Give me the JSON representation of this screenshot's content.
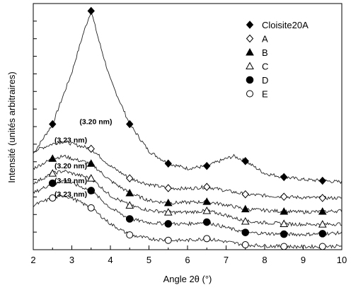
{
  "chart_data": {
    "type": "line",
    "xlabel": "Angle 2θ (°)",
    "ylabel": "Intensité (unités arbitraires)",
    "xlim": [
      2,
      10
    ],
    "xticks": [
      "2",
      "3",
      "4",
      "5",
      "6",
      "7",
      "8",
      "9",
      "10"
    ],
    "y_tick_labels_shown": false,
    "grid": false,
    "legend_position": "top-right",
    "series": [
      {
        "name": "Cloisite20A",
        "marker": "diamond-filled",
        "x": [
          2.0,
          2.5,
          3.0,
          3.3,
          3.5,
          3.7,
          4.0,
          4.5,
          5.0,
          5.5,
          6.0,
          6.5,
          7.0,
          7.2,
          7.5,
          8.0,
          8.5,
          9.0,
          9.5,
          10.0
        ],
        "y": [
          39,
          51,
          72,
          88,
          97,
          85,
          69,
          51,
          40,
          35,
          33,
          34,
          37,
          38,
          36,
          31,
          29.5,
          28.5,
          28,
          27.5
        ],
        "marker_x": [
          2.5,
          3.5,
          4.5,
          5.5,
          6.5,
          7.5,
          8.5,
          9.5
        ]
      },
      {
        "name": "A",
        "marker": "diamond-open",
        "x": [
          2.0,
          2.5,
          2.8,
          3.0,
          3.5,
          4.0,
          4.5,
          5.0,
          5.5,
          6.0,
          6.5,
          7.0,
          7.5,
          8.0,
          8.5,
          9.0,
          9.5,
          10.0
        ],
        "y": [
          40,
          43,
          44,
          43,
          41,
          34,
          29,
          26.5,
          25,
          24.8,
          25.5,
          24,
          22.5,
          22,
          21.5,
          21.2,
          21,
          21
        ],
        "marker_x": [
          3.5,
          4.5,
          5.5,
          6.5,
          7.5,
          8.5,
          9.5
        ]
      },
      {
        "name": "B",
        "marker": "triangle-filled",
        "x": [
          2.0,
          2.5,
          2.8,
          3.0,
          3.5,
          4.0,
          4.5,
          5.0,
          5.5,
          6.0,
          6.5,
          7.0,
          7.5,
          8.0,
          8.5,
          9.0,
          9.5,
          10.0
        ],
        "y": [
          33,
          37,
          38,
          37,
          35,
          28,
          23,
          20,
          19,
          19.2,
          19.5,
          18.2,
          16.5,
          16,
          15.5,
          15.3,
          15.5,
          15.8
        ],
        "marker_x": [
          2.5,
          3.5,
          4.5,
          5.5,
          6.5,
          7.5,
          8.5,
          9.5
        ]
      },
      {
        "name": "C",
        "marker": "triangle-open",
        "x": [
          2.0,
          2.5,
          2.8,
          3.0,
          3.5,
          4.0,
          4.5,
          5.0,
          5.5,
          6.0,
          6.5,
          7.0,
          7.5,
          8.0,
          8.5,
          9.0,
          9.5,
          10.0
        ],
        "y": [
          27,
          31,
          32,
          31,
          29,
          22,
          18,
          16,
          15.2,
          15.2,
          15.8,
          14,
          11.5,
          11,
          10.5,
          10.3,
          10.3,
          10.5
        ],
        "marker_x": [
          2.5,
          3.5,
          4.5,
          5.5,
          6.5,
          7.5,
          8.5,
          9.5
        ]
      },
      {
        "name": "D",
        "marker": "circle-filled",
        "x": [
          2.0,
          2.5,
          2.8,
          3.0,
          3.5,
          4.0,
          4.5,
          5.0,
          5.5,
          6.0,
          6.5,
          7.0,
          7.5,
          8.0,
          8.5,
          9.0,
          9.5,
          10.0
        ],
        "y": [
          23,
          27,
          28,
          27,
          24,
          17,
          12.5,
          11,
          10.5,
          10.5,
          11.2,
          9,
          7,
          6.6,
          6.3,
          6.2,
          6.5,
          6.8
        ],
        "marker_x": [
          2.5,
          3.5,
          4.5,
          5.5,
          6.5,
          7.5,
          8.5,
          9.5
        ]
      },
      {
        "name": "E",
        "marker": "circle-open",
        "x": [
          2.0,
          2.5,
          2.8,
          3.0,
          3.5,
          4.0,
          4.5,
          5.0,
          5.5,
          6.0,
          6.5,
          7.0,
          7.5,
          8.0,
          8.5,
          9.0,
          9.5,
          10.0
        ],
        "y": [
          18,
          21,
          22,
          21,
          17,
          10.5,
          6,
          4.5,
          3.8,
          3.8,
          4.5,
          3.2,
          2,
          1.6,
          1.3,
          1.2,
          1.3,
          1.5
        ],
        "marker_x": [
          2.5,
          3.5,
          4.5,
          5.5,
          6.5,
          7.5,
          8.5,
          9.5
        ]
      }
    ],
    "annotations": [
      {
        "text": "(3.20 nm)",
        "x": 3.2,
        "y": 51
      },
      {
        "text": "(3.23 nm)",
        "x": 2.55,
        "y": 43.5
      },
      {
        "text": "(3.20 nm)",
        "x": 2.55,
        "y": 33
      },
      {
        "text": "(3.19 nm)",
        "x": 2.55,
        "y": 27
      },
      {
        "text": "(3.23 nm)",
        "x": 2.55,
        "y": 21.5
      }
    ]
  }
}
